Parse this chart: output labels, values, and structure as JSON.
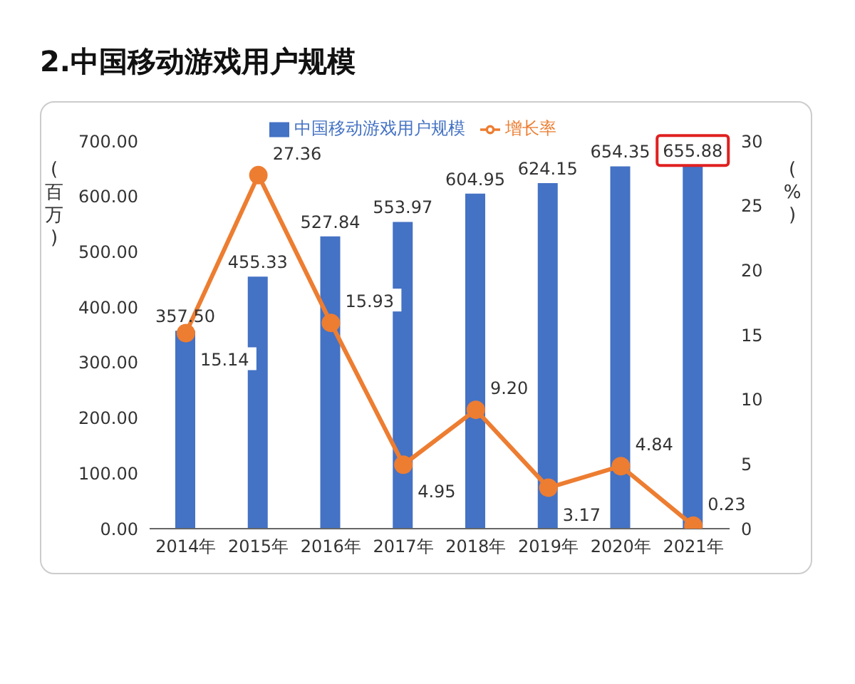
{
  "chart_data": {
    "type": "bar",
    "title": "2.中国移动游戏用户规模",
    "ylabel": "(百万)",
    "y2label": "(%)",
    "categories": [
      "2014年",
      "2015年",
      "2016年",
      "2017年",
      "2018年",
      "2019年",
      "2020年",
      "2021年"
    ],
    "series": [
      {
        "name": "中国移动游戏用户规模",
        "color": "#4472c4",
        "values": [
          357.5,
          455.33,
          527.84,
          553.97,
          604.95,
          624.15,
          654.35,
          655.88
        ],
        "value_labels": [
          "357.50",
          "455.33",
          "527.84",
          "553.97",
          "604.95",
          "624.15",
          "654.35",
          "655.88"
        ]
      },
      {
        "name": "增长率",
        "type": "line",
        "axis": "y2",
        "color": "#ed7d31",
        "marker": "circle",
        "values": [
          15.14,
          27.36,
          15.93,
          4.95,
          9.2,
          3.17,
          4.84,
          0.23
        ],
        "value_labels": [
          "15.14",
          "27.36",
          "15.93",
          "4.95",
          "9.20",
          "3.17",
          "4.84",
          "0.23"
        ]
      }
    ],
    "ylim": [
      0,
      700
    ],
    "yticks": [
      {
        "value": 0,
        "label": "0.00"
      },
      {
        "value": 100,
        "label": "100.00"
      },
      {
        "value": 200,
        "label": "200.00"
      },
      {
        "value": 300,
        "label": "300.00"
      },
      {
        "value": 400,
        "label": "400.00"
      },
      {
        "value": 500,
        "label": "500.00"
      },
      {
        "value": 600,
        "label": "600.00"
      },
      {
        "value": 700,
        "label": "700.00"
      }
    ],
    "y2lim": [
      0,
      30
    ],
    "y2ticks": [
      0,
      5,
      10,
      15,
      20,
      25,
      30
    ],
    "legend": "top",
    "grid": false
  }
}
